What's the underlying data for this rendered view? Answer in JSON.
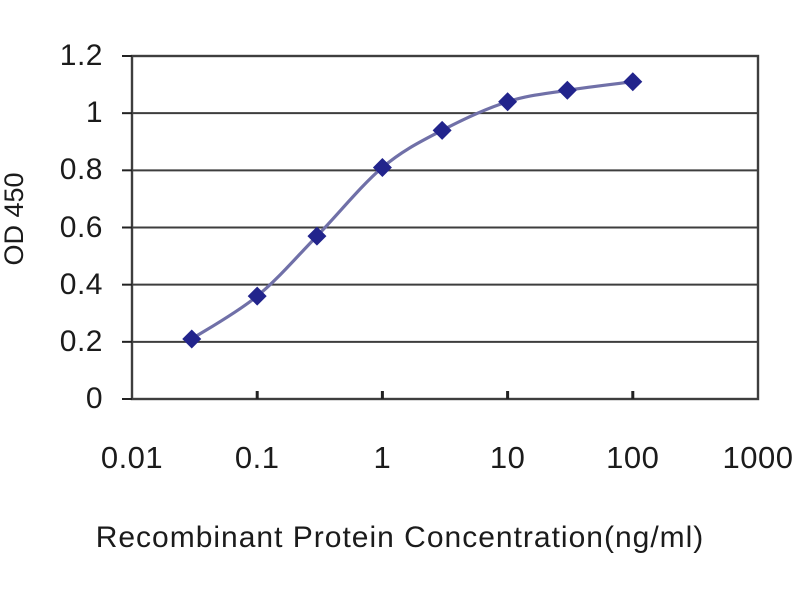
{
  "chart_data": {
    "type": "line",
    "title": "",
    "xlabel": "Recombinant Protein Concentration(ng/ml)",
    "ylabel": "OD 450",
    "xscale": "log",
    "xlim": [
      0.01,
      1000
    ],
    "ylim": [
      0,
      1.2
    ],
    "x_tick_values": [
      0.01,
      0.1,
      1,
      10,
      100,
      1000
    ],
    "x_tick_labels": [
      "0.01",
      "0.1",
      "1",
      "10",
      "100",
      "1000"
    ],
    "y_tick_values": [
      0,
      0.2,
      0.4,
      0.6,
      0.8,
      1,
      1.2
    ],
    "y_tick_labels": [
      "0",
      "0.2",
      "0.4",
      "0.6",
      "0.8",
      "1",
      "1.2"
    ],
    "grid": "horizontal-major",
    "legend": "none",
    "marker": "diamond",
    "smooth": true,
    "series": [
      {
        "name": "OD 450",
        "x": [
          0.03,
          0.1,
          0.3,
          1,
          3,
          10,
          30,
          100
        ],
        "y": [
          0.21,
          0.36,
          0.57,
          0.81,
          0.94,
          1.04,
          1.08,
          1.11
        ]
      }
    ],
    "colors": {
      "line": "#7070a8",
      "marker": "#22248c",
      "grid": "#3e3e3e",
      "frame": "#3e3e3e",
      "tick": "#222222",
      "text": "#1b1b1b",
      "background": "#ffffff"
    }
  }
}
